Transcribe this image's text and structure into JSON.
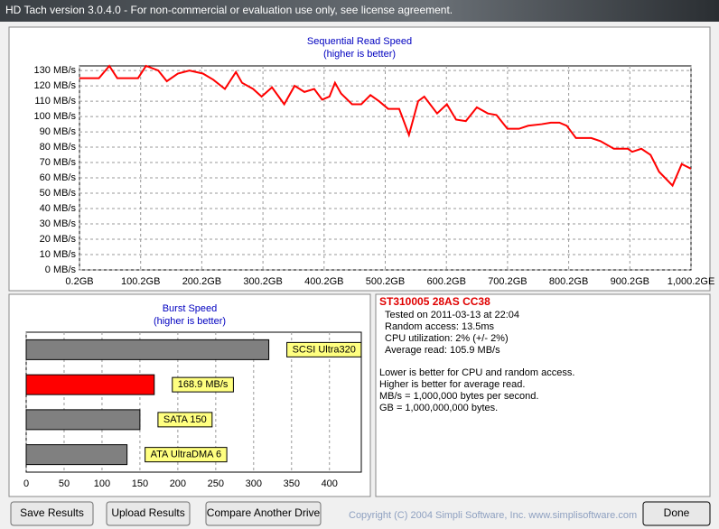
{
  "window": {
    "title": "HD Tach version 3.0.4.0  - For non-commercial or evaluation use only, see license agreement."
  },
  "chart_data": [
    {
      "type": "line",
      "title": "Sequential Read Speed",
      "subtitle": "(higher is better)",
      "color": "#ff0000",
      "x": [
        0,
        32,
        49,
        62,
        96,
        109,
        129,
        143,
        161,
        180,
        202,
        219,
        238,
        256,
        266,
        284,
        298,
        315,
        335,
        352,
        368,
        384,
        397,
        409,
        418,
        428,
        446,
        461,
        476,
        490,
        505,
        523,
        539,
        554,
        564,
        585,
        601,
        616,
        632,
        650,
        668,
        682,
        700,
        719,
        734,
        756,
        771,
        785,
        797,
        812,
        837,
        852,
        874,
        897,
        904,
        919,
        934,
        948,
        970,
        985,
        1000
      ],
      "values": [
        125,
        125,
        133,
        125,
        125,
        133,
        130,
        123,
        128,
        130,
        128,
        124,
        118,
        129,
        122,
        118,
        113,
        119,
        108,
        120,
        116,
        118,
        111,
        113,
        122,
        115,
        108,
        108,
        114,
        110,
        105,
        105,
        88,
        110,
        113,
        102,
        108,
        98,
        97,
        106,
        102,
        101,
        92,
        92,
        94,
        95,
        96,
        96,
        94,
        86,
        86,
        84,
        79,
        79,
        77,
        79,
        75,
        64,
        55,
        69,
        66
      ],
      "xlim": [
        0.2,
        1000.2
      ],
      "xticks": [
        {
          "value": 0.2,
          "label": "0.2GB"
        },
        {
          "value": 100.2,
          "label": "100.2GB"
        },
        {
          "value": 200.2,
          "label": "200.2GB"
        },
        {
          "value": 300.2,
          "label": "300.2GB"
        },
        {
          "value": 400.2,
          "label": "400.2GB"
        },
        {
          "value": 500.2,
          "label": "500.2GB"
        },
        {
          "value": 600.2,
          "label": "600.2GB"
        },
        {
          "value": 700.2,
          "label": "700.2GB"
        },
        {
          "value": 800.2,
          "label": "800.2GB"
        },
        {
          "value": 900.2,
          "label": "900.2GB"
        },
        {
          "value": 1000.2,
          "label": "1,000.2GE"
        }
      ],
      "ylim": [
        0,
        133
      ],
      "yticks": [
        {
          "value": 0,
          "label": "0 MB/s"
        },
        {
          "value": 10,
          "label": "10 MB/s"
        },
        {
          "value": 20,
          "label": "20 MB/s"
        },
        {
          "value": 30,
          "label": "30 MB/s"
        },
        {
          "value": 40,
          "label": "40 MB/s"
        },
        {
          "value": 50,
          "label": "50 MB/s"
        },
        {
          "value": 60,
          "label": "60 MB/s"
        },
        {
          "value": 70,
          "label": "70 MB/s"
        },
        {
          "value": 80,
          "label": "80 MB/s"
        },
        {
          "value": 90,
          "label": "90 MB/s"
        },
        {
          "value": 100,
          "label": "100 MB/s"
        },
        {
          "value": 110,
          "label": "110 MB/s"
        },
        {
          "value": 120,
          "label": "120 MB/s"
        },
        {
          "value": 130,
          "label": "130 MB/s"
        }
      ],
      "grid": true
    },
    {
      "type": "hbar",
      "title": "Burst Speed",
      "subtitle": "(higher is better)",
      "categories": [
        "SCSI Ultra320",
        null,
        "SATA 150",
        "ATA UltraDMA 6"
      ],
      "values": [
        320,
        168.9,
        150,
        133
      ],
      "value_labels": [
        null,
        "168.9 MB/s",
        null,
        null
      ],
      "colors": [
        "#808080",
        "#ff0000",
        "#808080",
        "#808080"
      ],
      "xlim": [
        0,
        442
      ],
      "xticks": [
        0,
        50,
        100,
        150,
        200,
        250,
        300,
        350,
        400
      ],
      "grid": true
    }
  ],
  "info": {
    "drive": "ST310005 28AS CC38",
    "details": [
      "Tested on 2011-03-13 at 22:04",
      "Random access: 13.5ms",
      "CPU utilization: 2% (+/- 2%)",
      "Average read: 105.9 MB/s"
    ],
    "notes": [
      "Lower is better for CPU and random access.",
      "Higher is better for average read.",
      "MB/s = 1,000,000 bytes per second.",
      "GB = 1,000,000,000 bytes."
    ]
  },
  "buttons": [
    "Save Results",
    "Upload Results",
    "Compare Another Drive",
    "Done"
  ],
  "copyright": "Copyright (C) 2004 Simpli Software, Inc. www.simplisoftware.com"
}
